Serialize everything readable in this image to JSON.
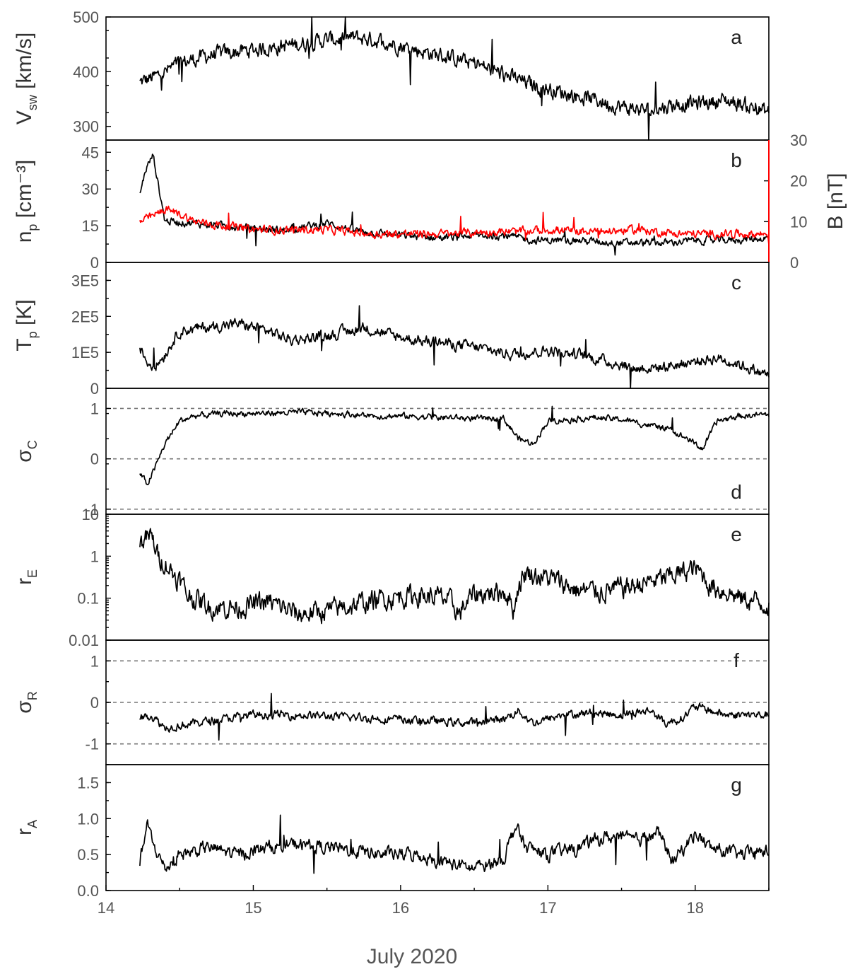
{
  "chart_data": {
    "type": "line",
    "xlabel": "July 2020",
    "xlim": [
      14.0,
      18.5
    ],
    "xticks": [
      "14",
      "15",
      "16",
      "17",
      "18"
    ],
    "colors": {
      "primary": "#000000",
      "secondary_axis": "#ff0000"
    },
    "panels": [
      {
        "letter": "a",
        "ylabel": "V",
        "ylabel_sub": "sw",
        "ylabel_unit": " [km/s]",
        "scale": "linear",
        "ylim": [
          275,
          500
        ],
        "yticks": [
          "300",
          "400",
          "500"
        ],
        "tick_values": [
          300,
          400,
          500
        ],
        "reference_lines": [],
        "series": [
          {
            "color": "#000000",
            "noise": 14,
            "points": [
              [
                14.23,
                380
              ],
              [
                14.35,
                392
              ],
              [
                14.5,
                415
              ],
              [
                14.7,
                430
              ],
              [
                15.0,
                440
              ],
              [
                15.3,
                450
              ],
              [
                15.5,
                458
              ],
              [
                15.7,
                462
              ],
              [
                15.9,
                455
              ],
              [
                16.1,
                440
              ],
              [
                16.3,
                428
              ],
              [
                16.5,
                415
              ],
              [
                16.7,
                395
              ],
              [
                16.9,
                375
              ],
              [
                17.1,
                362
              ],
              [
                17.3,
                350
              ],
              [
                17.5,
                335
              ],
              [
                17.7,
                328
              ],
              [
                17.85,
                340
              ],
              [
                18.0,
                342
              ],
              [
                18.2,
                348
              ],
              [
                18.35,
                338
              ],
              [
                18.5,
                325
              ]
            ]
          }
        ]
      },
      {
        "letter": "b",
        "ylabel": "n",
        "ylabel_sub": "p",
        "ylabel_unit": " [cm⁻³]",
        "scale": "linear",
        "ylim": [
          0,
          50
        ],
        "yticks": [
          "0",
          "15",
          "30",
          "45"
        ],
        "tick_values": [
          0,
          15,
          30,
          45
        ],
        "right_axis": {
          "ylabel": "B [nT]",
          "ylim": [
            0,
            30
          ],
          "yticks": [
            "0",
            "10",
            "20",
            "30"
          ],
          "tick_values": [
            0,
            10,
            20,
            30
          ],
          "color": "#ff0000"
        },
        "reference_lines": [],
        "series": [
          {
            "color": "#000000",
            "noise": 1.5,
            "points": [
              [
                14.23,
                28
              ],
              [
                14.27,
                38
              ],
              [
                14.32,
                44
              ],
              [
                14.36,
                30
              ],
              [
                14.4,
                17
              ],
              [
                14.6,
                16
              ],
              [
                14.8,
                15
              ],
              [
                15.0,
                14
              ],
              [
                15.2,
                13
              ],
              [
                15.5,
                16
              ],
              [
                15.7,
                13
              ],
              [
                16.0,
                11
              ],
              [
                16.3,
                10
              ],
              [
                16.5,
                11
              ],
              [
                16.7,
                11
              ],
              [
                16.9,
                9
              ],
              [
                17.2,
                9
              ],
              [
                17.5,
                8
              ],
              [
                17.8,
                8
              ],
              [
                18.0,
                9
              ],
              [
                18.2,
                9
              ],
              [
                18.5,
                10
              ]
            ]
          },
          {
            "color": "#ff0000",
            "axis": "right",
            "noise": 1.0,
            "points": [
              [
                14.23,
                10
              ],
              [
                14.3,
                11
              ],
              [
                14.4,
                13
              ],
              [
                14.5,
                12
              ],
              [
                14.6,
                10
              ],
              [
                14.8,
                9
              ],
              [
                15.0,
                8
              ],
              [
                15.3,
                8
              ],
              [
                15.5,
                8
              ],
              [
                15.8,
                7
              ],
              [
                16.0,
                7
              ],
              [
                16.3,
                7
              ],
              [
                16.6,
                7.5
              ],
              [
                16.8,
                7.5
              ],
              [
                17.0,
                8
              ],
              [
                17.3,
                7.5
              ],
              [
                17.6,
                8
              ],
              [
                17.9,
                7
              ],
              [
                18.2,
                7
              ],
              [
                18.5,
                7
              ]
            ]
          }
        ]
      },
      {
        "letter": "c",
        "ylabel": "T",
        "ylabel_sub": "p",
        "ylabel_unit": " [K]",
        "scale": "linear",
        "ylim": [
          0,
          350000
        ],
        "yticks": [
          "0",
          "1E5",
          "2E5",
          "3E5"
        ],
        "tick_values": [
          0,
          100000,
          200000,
          300000
        ],
        "reference_lines": [],
        "series": [
          {
            "color": "#000000",
            "noise": 15000,
            "points": [
              [
                14.23,
                110000
              ],
              [
                14.28,
                75000
              ],
              [
                14.33,
                60000
              ],
              [
                14.4,
                95000
              ],
              [
                14.5,
                160000
              ],
              [
                14.7,
                170000
              ],
              [
                14.9,
                180000
              ],
              [
                15.1,
                160000
              ],
              [
                15.25,
                135000
              ],
              [
                15.4,
                140000
              ],
              [
                15.6,
                155000
              ],
              [
                15.75,
                170000
              ],
              [
                15.9,
                150000
              ],
              [
                16.1,
                135000
              ],
              [
                16.3,
                125000
              ],
              [
                16.5,
                115000
              ],
              [
                16.75,
                95000
              ],
              [
                17.0,
                105000
              ],
              [
                17.2,
                95000
              ],
              [
                17.4,
                75000
              ],
              [
                17.6,
                55000
              ],
              [
                17.8,
                60000
              ],
              [
                18.0,
                75000
              ],
              [
                18.15,
                85000
              ],
              [
                18.35,
                60000
              ],
              [
                18.5,
                35000
              ]
            ]
          }
        ]
      },
      {
        "letter": "d",
        "ylabel": "σ",
        "ylabel_sub": "C",
        "ylabel_unit": "",
        "scale": "linear",
        "ylim": [
          -1.1,
          1.4
        ],
        "yticks": [
          "-1",
          "0",
          "1"
        ],
        "tick_values": [
          -1,
          0,
          1
        ],
        "reference_lines": [
          1,
          0,
          -1
        ],
        "series": [
          {
            "color": "#000000",
            "noise": 0.06,
            "points": [
              [
                14.23,
                -0.3
              ],
              [
                14.28,
                -0.5
              ],
              [
                14.33,
                -0.2
              ],
              [
                14.4,
                0.3
              ],
              [
                14.5,
                0.75
              ],
              [
                14.6,
                0.85
              ],
              [
                14.8,
                0.9
              ],
              [
                15.0,
                0.9
              ],
              [
                15.3,
                0.92
              ],
              [
                15.6,
                0.9
              ],
              [
                15.8,
                0.85
              ],
              [
                16.0,
                0.85
              ],
              [
                16.3,
                0.82
              ],
              [
                16.5,
                0.8
              ],
              [
                16.7,
                0.8
              ],
              [
                16.8,
                0.4
              ],
              [
                16.9,
                0.3
              ],
              [
                17.0,
                0.75
              ],
              [
                17.3,
                0.82
              ],
              [
                17.5,
                0.78
              ],
              [
                17.8,
                0.6
              ],
              [
                17.95,
                0.4
              ],
              [
                18.05,
                0.2
              ],
              [
                18.15,
                0.75
              ],
              [
                18.3,
                0.85
              ],
              [
                18.5,
                0.88
              ]
            ]
          }
        ]
      },
      {
        "letter": "e",
        "ylabel": "r",
        "ylabel_sub": "E",
        "ylabel_unit": "",
        "scale": "log",
        "ylim": [
          0.01,
          10
        ],
        "yticks": [
          "0.01",
          "0.1",
          "1",
          "10"
        ],
        "tick_values": [
          0.01,
          0.1,
          1,
          10
        ],
        "reference_lines": [],
        "series": [
          {
            "color": "#000000",
            "noise_log": 0.28,
            "points": [
              [
                14.23,
                2
              ],
              [
                14.3,
                3
              ],
              [
                14.35,
                1
              ],
              [
                14.45,
                0.4
              ],
              [
                14.55,
                0.12
              ],
              [
                14.7,
                0.06
              ],
              [
                14.9,
                0.06
              ],
              [
                15.1,
                0.08
              ],
              [
                15.3,
                0.04
              ],
              [
                15.5,
                0.05
              ],
              [
                15.7,
                0.07
              ],
              [
                15.9,
                0.1
              ],
              [
                16.1,
                0.12
              ],
              [
                16.3,
                0.1
              ],
              [
                16.4,
                0.04
              ],
              [
                16.5,
                0.12
              ],
              [
                16.7,
                0.15
              ],
              [
                16.77,
                0.05
              ],
              [
                16.85,
                0.4
              ],
              [
                17.0,
                0.3
              ],
              [
                17.2,
                0.15
              ],
              [
                17.4,
                0.15
              ],
              [
                17.6,
                0.2
              ],
              [
                17.8,
                0.3
              ],
              [
                18.0,
                0.5
              ],
              [
                18.1,
                0.2
              ],
              [
                18.3,
                0.1
              ],
              [
                18.5,
                0.07
              ]
            ]
          }
        ]
      },
      {
        "letter": "f",
        "ylabel": "σ",
        "ylabel_sub": "R",
        "ylabel_unit": "",
        "scale": "linear",
        "ylim": [
          -1.5,
          1.5
        ],
        "yticks": [
          "-1",
          "0",
          "1"
        ],
        "tick_values": [
          -1,
          0,
          1
        ],
        "reference_lines": [
          1,
          0,
          -1
        ],
        "series": [
          {
            "color": "#000000",
            "noise": 0.1,
            "points": [
              [
                14.23,
                -0.4
              ],
              [
                14.3,
                -0.3
              ],
              [
                14.4,
                -0.6
              ],
              [
                14.6,
                -0.5
              ],
              [
                14.8,
                -0.4
              ],
              [
                15.0,
                -0.3
              ],
              [
                15.3,
                -0.3
              ],
              [
                15.6,
                -0.35
              ],
              [
                15.9,
                -0.4
              ],
              [
                16.2,
                -0.45
              ],
              [
                16.5,
                -0.5
              ],
              [
                16.7,
                -0.4
              ],
              [
                16.8,
                -0.2
              ],
              [
                16.9,
                -0.5
              ],
              [
                17.1,
                -0.3
              ],
              [
                17.3,
                -0.25
              ],
              [
                17.5,
                -0.3
              ],
              [
                17.7,
                -0.2
              ],
              [
                17.8,
                -0.5
              ],
              [
                17.9,
                -0.4
              ],
              [
                18.0,
                -0.1
              ],
              [
                18.2,
                -0.3
              ],
              [
                18.5,
                -0.3
              ]
            ]
          }
        ]
      },
      {
        "letter": "g",
        "ylabel": "r",
        "ylabel_sub": "A",
        "ylabel_unit": "",
        "scale": "linear",
        "ylim": [
          0,
          1.75
        ],
        "yticks": [
          "0.0",
          "0.5",
          "1.0",
          "1.5"
        ],
        "tick_values": [
          0,
          0.5,
          1.0,
          1.5
        ],
        "reference_lines": [],
        "series": [
          {
            "color": "#000000",
            "noise": 0.09,
            "points": [
              [
                14.23,
                0.4
              ],
              [
                14.28,
                0.9
              ],
              [
                14.33,
                0.6
              ],
              [
                14.4,
                0.3
              ],
              [
                14.5,
                0.5
              ],
              [
                14.7,
                0.6
              ],
              [
                14.9,
                0.5
              ],
              [
                15.1,
                0.6
              ],
              [
                15.3,
                0.65
              ],
              [
                15.5,
                0.6
              ],
              [
                15.7,
                0.55
              ],
              [
                15.9,
                0.5
              ],
              [
                16.1,
                0.5
              ],
              [
                16.3,
                0.4
              ],
              [
                16.5,
                0.3
              ],
              [
                16.7,
                0.45
              ],
              [
                16.78,
                0.9
              ],
              [
                16.85,
                0.6
              ],
              [
                17.0,
                0.5
              ],
              [
                17.2,
                0.6
              ],
              [
                17.4,
                0.75
              ],
              [
                17.6,
                0.7
              ],
              [
                17.75,
                0.8
              ],
              [
                17.85,
                0.4
              ],
              [
                18.0,
                0.8
              ],
              [
                18.1,
                0.6
              ],
              [
                18.3,
                0.5
              ],
              [
                18.5,
                0.55
              ]
            ]
          }
        ]
      }
    ]
  }
}
